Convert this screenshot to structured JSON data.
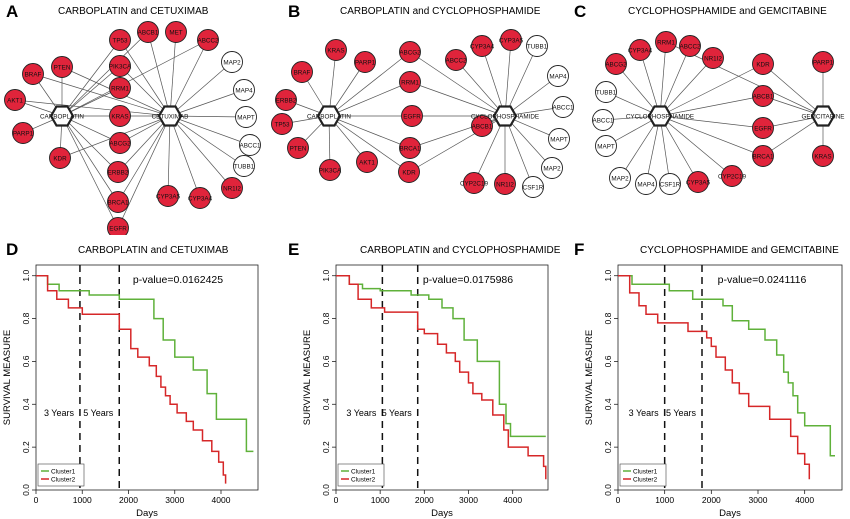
{
  "networks": [
    {
      "letter": "A",
      "title": "CARBOPLATIN  and  CETUXIMAB",
      "hubs": [
        {
          "id": "h1",
          "label": "CARBOPLATIN"
        },
        {
          "id": "h2",
          "label": "CETUXIMAB"
        }
      ],
      "nodes": [
        {
          "label": "TP53",
          "red": true,
          "links": [
            "h1",
            "h2"
          ]
        },
        {
          "label": "ABCB1",
          "red": true,
          "links": [
            "h1",
            "h2"
          ]
        },
        {
          "label": "MET",
          "red": true,
          "links": [
            "h2"
          ]
        },
        {
          "label": "ABCC2",
          "red": true,
          "links": [
            "h1",
            "h2"
          ]
        },
        {
          "label": "PIK3CA",
          "red": true,
          "links": [
            "h1",
            "h2"
          ]
        },
        {
          "label": "PTEN",
          "red": true,
          "links": [
            "h1",
            "h2"
          ]
        },
        {
          "label": "BRAF",
          "red": true,
          "links": [
            "h1",
            "h2"
          ]
        },
        {
          "label": "RRM1",
          "red": true,
          "links": [
            "h1"
          ]
        },
        {
          "label": "AKT1",
          "red": true,
          "links": [
            "h1",
            "h2"
          ]
        },
        {
          "label": "KRAS",
          "red": true,
          "links": [
            "h1",
            "h2"
          ]
        },
        {
          "label": "PARP1",
          "red": true,
          "links": [
            "h1"
          ]
        },
        {
          "label": "ABCG2",
          "red": true,
          "links": [
            "h1",
            "h2"
          ]
        },
        {
          "label": "KDR",
          "red": true,
          "links": [
            "h1",
            "h2"
          ]
        },
        {
          "label": "ERBB2",
          "red": true,
          "links": [
            "h1",
            "h2"
          ]
        },
        {
          "label": "BRCA1",
          "red": true,
          "links": [
            "h1",
            "h2"
          ]
        },
        {
          "label": "EGFR",
          "red": true,
          "links": [
            "h1",
            "h2"
          ]
        },
        {
          "label": "CYP3A5",
          "red": true,
          "links": [
            "h2"
          ]
        },
        {
          "label": "CYP3A4",
          "red": true,
          "links": [
            "h2"
          ]
        },
        {
          "label": "NR1I2",
          "red": true,
          "links": [
            "h2"
          ]
        },
        {
          "label": "MAP2",
          "red": false,
          "links": [
            "h2"
          ]
        },
        {
          "label": "MAP4",
          "red": false,
          "links": [
            "h2"
          ]
        },
        {
          "label": "MAPT",
          "red": false,
          "links": [
            "h2"
          ]
        },
        {
          "label": "ABCC1",
          "red": false,
          "links": [
            "h2"
          ]
        },
        {
          "label": "TUBB1",
          "red": false,
          "links": [
            "h2"
          ]
        }
      ]
    },
    {
      "letter": "B",
      "title": "CARBOPLATIN  and  CYCLOPHOSPHAMIDE",
      "hubs": [
        {
          "id": "h1",
          "label": "CARBOPLATIN"
        },
        {
          "id": "h2",
          "label": "CYCLOPHOSPHAMIDE"
        }
      ],
      "nodes": [
        {
          "label": "KRAS",
          "red": true,
          "links": [
            "h1"
          ]
        },
        {
          "label": "PARP1",
          "red": true,
          "links": [
            "h1"
          ]
        },
        {
          "label": "BRAF",
          "red": true,
          "links": [
            "h1"
          ]
        },
        {
          "label": "ERBB2",
          "red": true,
          "links": [
            "h1"
          ]
        },
        {
          "label": "TP53",
          "red": true,
          "links": [
            "h1"
          ]
        },
        {
          "label": "PTEN",
          "red": true,
          "links": [
            "h1"
          ]
        },
        {
          "label": "PIK3CA",
          "red": true,
          "links": [
            "h1"
          ]
        },
        {
          "label": "AKT1",
          "red": true,
          "links": [
            "h1"
          ]
        },
        {
          "label": "ABCG2",
          "red": true,
          "links": [
            "h1",
            "h2"
          ]
        },
        {
          "label": "RRM1",
          "red": true,
          "links": [
            "h1",
            "h2"
          ]
        },
        {
          "label": "EGFR",
          "red": true,
          "links": [
            "h1",
            "h2"
          ]
        },
        {
          "label": "BRCA1",
          "red": true,
          "links": [
            "h1",
            "h2"
          ]
        },
        {
          "label": "KDR",
          "red": true,
          "links": [
            "h1",
            "h2"
          ]
        },
        {
          "label": "CYP3A4",
          "red": true,
          "links": [
            "h2"
          ]
        },
        {
          "label": "CYP3A5",
          "red": true,
          "links": [
            "h2"
          ]
        },
        {
          "label": "ABCC2",
          "red": true,
          "links": [
            "h2"
          ]
        },
        {
          "label": "ABCB1",
          "red": true,
          "links": [
            "h2"
          ]
        },
        {
          "label": "CYP2C19",
          "red": true,
          "links": [
            "h2"
          ]
        },
        {
          "label": "NR1I2",
          "red": true,
          "links": [
            "h2"
          ]
        },
        {
          "label": "TUBB1",
          "red": false,
          "links": [
            "h2"
          ]
        },
        {
          "label": "MAP4",
          "red": false,
          "links": [
            "h2"
          ]
        },
        {
          "label": "ABCC1",
          "red": false,
          "links": [
            "h2"
          ]
        },
        {
          "label": "MAPT",
          "red": false,
          "links": [
            "h2"
          ]
        },
        {
          "label": "MAP2",
          "red": false,
          "links": [
            "h2"
          ]
        },
        {
          "label": "CSF1R",
          "red": false,
          "links": [
            "h2"
          ]
        }
      ]
    },
    {
      "letter": "C",
      "title": "CYCLOPHOSPHAMIDE  and  GEMCITABINE",
      "hubs": [
        {
          "id": "h1",
          "label": "CYCLOPHOSPHAMIDE"
        },
        {
          "id": "h2",
          "label": "GEMCITABINE"
        }
      ],
      "nodes": [
        {
          "label": "CYP3A4",
          "red": true,
          "links": [
            "h1"
          ]
        },
        {
          "label": "RRM1",
          "red": true,
          "links": [
            "h1",
            "h2"
          ]
        },
        {
          "label": "ABCC2",
          "red": true,
          "links": [
            "h1"
          ]
        },
        {
          "label": "ABCG2",
          "red": true,
          "links": [
            "h1"
          ]
        },
        {
          "label": "NR1I2",
          "red": true,
          "links": [
            "h1"
          ]
        },
        {
          "label": "TUBB1",
          "red": false,
          "links": [
            "h1"
          ]
        },
        {
          "label": "ABCC1",
          "red": false,
          "links": [
            "h1"
          ]
        },
        {
          "label": "MAPT",
          "red": false,
          "links": [
            "h1"
          ]
        },
        {
          "label": "MAP2",
          "red": false,
          "links": [
            "h1"
          ]
        },
        {
          "label": "MAP4",
          "red": false,
          "links": [
            "h1"
          ]
        },
        {
          "label": "CSF1R",
          "red": false,
          "links": [
            "h1"
          ]
        },
        {
          "label": "CYP3A5",
          "red": true,
          "links": [
            "h1"
          ]
        },
        {
          "label": "CYP2C19",
          "red": true,
          "links": [
            "h1"
          ]
        },
        {
          "label": "KDR",
          "red": true,
          "links": [
            "h1",
            "h2"
          ]
        },
        {
          "label": "ABCB1",
          "red": true,
          "links": [
            "h1",
            "h2"
          ]
        },
        {
          "label": "EGFR",
          "red": true,
          "links": [
            "h1",
            "h2"
          ]
        },
        {
          "label": "BRCA1",
          "red": true,
          "links": [
            "h1",
            "h2"
          ]
        },
        {
          "label": "PARP1",
          "red": true,
          "links": [
            "h2"
          ]
        },
        {
          "label": "KRAS",
          "red": true,
          "links": [
            "h2"
          ]
        }
      ]
    }
  ],
  "chart_data": [
    {
      "type": "line",
      "letter": "D",
      "title": "CARBOPLATIN  and  CETUXIMAB",
      "xlabel": "Days",
      "ylabel": "SURVIVAL MEASURE",
      "xlim": [
        0,
        4800
      ],
      "ylim": [
        0,
        1.05
      ],
      "xticks": [
        0,
        1000,
        2000,
        3000,
        4000
      ],
      "yticks": [
        0.0,
        0.2,
        0.4,
        0.6,
        0.8,
        1.0
      ],
      "step": true,
      "pvalue_text": "p-value=0.0162425",
      "vlines": [
        {
          "x": 950,
          "label": "3 Years"
        },
        {
          "x": 1800,
          "label": "5 Years"
        }
      ],
      "legend": "bottom-left",
      "series": [
        {
          "name": "Cluster1",
          "color": "#5fb13a",
          "x": [
            0,
            250,
            500,
            1150,
            1800,
            2550,
            2750,
            3000,
            3400,
            3700,
            3900,
            4550,
            4700
          ],
          "y": [
            1.0,
            0.96,
            0.93,
            0.91,
            0.89,
            0.8,
            0.7,
            0.62,
            0.56,
            0.45,
            0.33,
            0.18,
            0.18
          ]
        },
        {
          "name": "Cluster2",
          "color": "#d62728",
          "x": [
            0,
            250,
            450,
            700,
            1000,
            1800,
            2050,
            2200,
            2450,
            2600,
            2700,
            2800,
            2900,
            3050,
            3250,
            3400,
            3600,
            3800,
            3950,
            4050,
            4100
          ],
          "y": [
            1.0,
            0.93,
            0.89,
            0.85,
            0.82,
            0.75,
            0.66,
            0.62,
            0.58,
            0.53,
            0.48,
            0.44,
            0.4,
            0.36,
            0.32,
            0.28,
            0.23,
            0.18,
            0.13,
            0.07,
            0.03
          ]
        }
      ]
    },
    {
      "type": "line",
      "letter": "E",
      "title": "CARBOPLATIN  and  CYCLOPHOSPHAMIDE",
      "xlabel": "Days",
      "ylabel": "SURVIVAL MEASURE",
      "xlim": [
        0,
        4800
      ],
      "ylim": [
        0,
        1.05
      ],
      "xticks": [
        0,
        1000,
        2000,
        3000,
        4000
      ],
      "yticks": [
        0.0,
        0.2,
        0.4,
        0.6,
        0.8,
        1.0
      ],
      "step": true,
      "pvalue_text": "p-value=0.0175986",
      "vlines": [
        {
          "x": 1050,
          "label": "3 Years"
        },
        {
          "x": 1850,
          "label": "5 Years"
        }
      ],
      "legend": "bottom-left",
      "series": [
        {
          "name": "Cluster1",
          "color": "#5fb13a",
          "x": [
            0,
            300,
            600,
            1000,
            1700,
            2100,
            2400,
            2650,
            2900,
            3200,
            3700,
            3850,
            3950,
            4750
          ],
          "y": [
            1.0,
            0.96,
            0.94,
            0.93,
            0.91,
            0.89,
            0.85,
            0.8,
            0.7,
            0.6,
            0.4,
            0.31,
            0.25,
            0.25
          ]
        },
        {
          "name": "Cluster2",
          "color": "#d62728",
          "x": [
            0,
            300,
            500,
            800,
            1100,
            1850,
            2000,
            2300,
            2500,
            2700,
            2800,
            3000,
            3100,
            3300,
            3550,
            3800,
            3900,
            4350,
            4700,
            4750
          ],
          "y": [
            1.0,
            0.96,
            0.89,
            0.85,
            0.83,
            0.75,
            0.73,
            0.68,
            0.64,
            0.6,
            0.55,
            0.5,
            0.45,
            0.42,
            0.35,
            0.28,
            0.2,
            0.16,
            0.11,
            0.05
          ]
        }
      ]
    },
    {
      "type": "line",
      "letter": "F",
      "title": "CYCLOPHOSPHAMIDE and GEMCITABINE",
      "xlabel": "Days",
      "ylabel": "SURVIVAL MEASURE",
      "xlim": [
        0,
        4800
      ],
      "ylim": [
        0,
        1.05
      ],
      "xticks": [
        0,
        1000,
        2000,
        3000,
        4000
      ],
      "yticks": [
        0.0,
        0.2,
        0.4,
        0.6,
        0.8,
        1.0
      ],
      "step": true,
      "pvalue_text": "p-value=0.0241116",
      "vlines": [
        {
          "x": 1000,
          "label": "3 Years"
        },
        {
          "x": 1800,
          "label": "5 Years"
        }
      ],
      "legend": "bottom-left",
      "series": [
        {
          "name": "Cluster1",
          "color": "#5fb13a",
          "x": [
            0,
            300,
            1100,
            1600,
            2250,
            2450,
            2800,
            3150,
            3400,
            3550,
            3650,
            3750,
            3850,
            4000,
            4550,
            4650
          ],
          "y": [
            1.0,
            0.96,
            0.93,
            0.89,
            0.86,
            0.79,
            0.75,
            0.7,
            0.63,
            0.55,
            0.5,
            0.44,
            0.36,
            0.3,
            0.16,
            0.16
          ]
        },
        {
          "name": "Cluster2",
          "color": "#d62728",
          "x": [
            0,
            250,
            450,
            600,
            850,
            1500,
            1900,
            2000,
            2100,
            2300,
            2450,
            2600,
            2800,
            3250,
            3700,
            3850,
            4000,
            4100
          ],
          "y": [
            1.0,
            0.92,
            0.86,
            0.82,
            0.78,
            0.74,
            0.71,
            0.67,
            0.62,
            0.56,
            0.5,
            0.45,
            0.39,
            0.33,
            0.25,
            0.17,
            0.12,
            0.05
          ]
        }
      ]
    }
  ]
}
